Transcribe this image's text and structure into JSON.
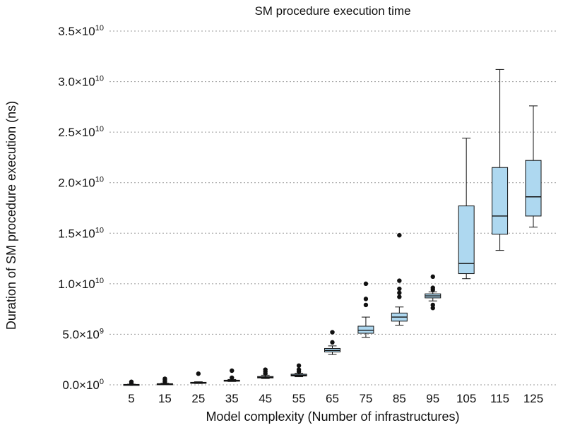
{
  "chart_data": {
    "type": "boxplot",
    "title": "SM procedure execution time",
    "xlabel": "Model complexity (Number of infrastructures)",
    "ylabel": "Duration of SM procedure execution (ns)",
    "ylim": [
      0,
      35000000000
    ],
    "grid": "horizontal-dotted",
    "y_ticks": [
      {
        "value": 0,
        "mantissa": "0.0×10",
        "exponent": "0"
      },
      {
        "value": 5000000000,
        "mantissa": "5.0×10",
        "exponent": "9"
      },
      {
        "value": 10000000000,
        "mantissa": "1.0×10",
        "exponent": "10"
      },
      {
        "value": 15000000000,
        "mantissa": "1.5×10",
        "exponent": "10"
      },
      {
        "value": 20000000000,
        "mantissa": "2.0×10",
        "exponent": "10"
      },
      {
        "value": 25000000000,
        "mantissa": "2.5×10",
        "exponent": "10"
      },
      {
        "value": 30000000000,
        "mantissa": "3.0×10",
        "exponent": "10"
      },
      {
        "value": 35000000000,
        "mantissa": "3.5×10",
        "exponent": "10"
      }
    ],
    "box_color": "#aed8f0",
    "categories": [
      "5",
      "15",
      "25",
      "35",
      "45",
      "55",
      "65",
      "75",
      "85",
      "95",
      "105",
      "115",
      "125"
    ],
    "boxes": [
      {
        "category": "5",
        "whisker_low": 0,
        "q1": 0,
        "median": 20000000,
        "q3": 40000000,
        "whisker_high": 60000000,
        "outliers": [
          150000000,
          300000000
        ]
      },
      {
        "category": "15",
        "whisker_low": 40000000,
        "q1": 60000000,
        "median": 80000000,
        "q3": 110000000,
        "whisker_high": 150000000,
        "outliers": [
          300000000,
          500000000,
          600000000
        ]
      },
      {
        "category": "25",
        "whisker_low": 130000000,
        "q1": 160000000,
        "median": 200000000,
        "q3": 250000000,
        "whisker_high": 300000000,
        "outliers": [
          1100000000
        ]
      },
      {
        "category": "35",
        "whisker_low": 330000000,
        "q1": 370000000,
        "median": 410000000,
        "q3": 460000000,
        "whisker_high": 530000000,
        "outliers": [
          700000000,
          1400000000
        ]
      },
      {
        "category": "45",
        "whisker_low": 620000000,
        "q1": 680000000,
        "median": 750000000,
        "q3": 820000000,
        "whisker_high": 950000000,
        "outliers": [
          1100000000,
          1300000000,
          1500000000
        ]
      },
      {
        "category": "55",
        "whisker_low": 800000000,
        "q1": 870000000,
        "median": 950000000,
        "q3": 1050000000,
        "whisker_high": 1150000000,
        "outliers": [
          1300000000,
          1500000000,
          1900000000
        ]
      },
      {
        "category": "65",
        "whisker_low": 3000000000,
        "q1": 3250000000,
        "median": 3400000000,
        "q3": 3600000000,
        "whisker_high": 3850000000,
        "outliers": [
          4200000000,
          5200000000
        ]
      },
      {
        "category": "75",
        "whisker_low": 4700000000,
        "q1": 5100000000,
        "median": 5400000000,
        "q3": 5800000000,
        "whisker_high": 6700000000,
        "outliers": [
          7900000000,
          8500000000,
          10000000000
        ]
      },
      {
        "category": "85",
        "whisker_low": 5900000000,
        "q1": 6300000000,
        "median": 6700000000,
        "q3": 7100000000,
        "whisker_high": 7700000000,
        "outliers": [
          8700000000,
          9100000000,
          9500000000,
          10300000000,
          14800000000
        ]
      },
      {
        "category": "95",
        "whisker_low": 8300000000,
        "q1": 8600000000,
        "median": 8800000000,
        "q3": 9000000000,
        "whisker_high": 9200000000,
        "outliers": [
          7600000000,
          7900000000,
          9400000000,
          9600000000,
          10700000000
        ]
      },
      {
        "category": "105",
        "whisker_low": 10500000000,
        "q1": 11000000000,
        "median": 12000000000,
        "q3": 17700000000,
        "whisker_high": 24400000000,
        "outliers": []
      },
      {
        "category": "115",
        "whisker_low": 13300000000,
        "q1": 14900000000,
        "median": 16700000000,
        "q3": 21500000000,
        "whisker_high": 31200000000,
        "outliers": []
      },
      {
        "category": "125",
        "whisker_low": 15600000000,
        "q1": 16700000000,
        "median": 18600000000,
        "q3": 22200000000,
        "whisker_high": 27600000000,
        "outliers": []
      }
    ]
  }
}
